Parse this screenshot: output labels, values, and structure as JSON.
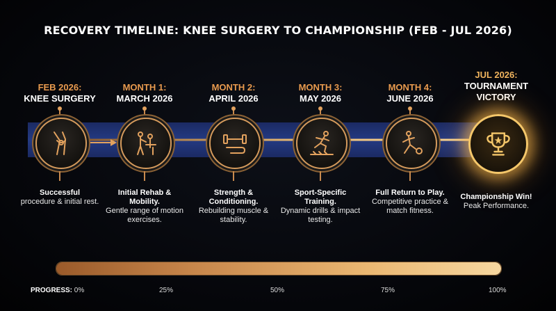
{
  "title": "RECOVERY TIMELINE: KNEE SURGERY TO CHAMPIONSHIP (FEB - JUL 2026)",
  "stages": [
    {
      "period": "FEB 2026:",
      "event": "KNEE SURGERY",
      "icon": "knee-joint-icon",
      "desc_bold": "Successful",
      "desc": "procedure & initial rest."
    },
    {
      "period": "MONTH 1:",
      "event": "MARCH 2026",
      "icon": "rehab-therapist-icon",
      "desc_bold": "Initial Rehab & Mobility.",
      "desc": "Gentle range of motion exercises."
    },
    {
      "period": "MONTH 2:",
      "event": "APRIL 2026",
      "icon": "dumbbell-icon",
      "desc_bold": "Strength & Conditioning.",
      "desc": "Rebuilding muscle & stability."
    },
    {
      "period": "MONTH 3:",
      "event": "MAY 2026",
      "icon": "sprinter-icon",
      "desc_bold": "Sport-Specific Training.",
      "desc": "Dynamic drills & impact testing."
    },
    {
      "period": "MONTH 4:",
      "event": "JUNE 2026",
      "icon": "soccer-player-icon",
      "desc_bold": "Full Return to Play.",
      "desc": "Competitive practice & match fitness."
    },
    {
      "period": "JUL 2026:",
      "event": "TOURNAMENT VICTORY",
      "icon": "trophy-icon",
      "desc_bold": "Championship Win!",
      "desc": "Peak Performance."
    }
  ],
  "progress": {
    "label": "PROGRESS:",
    "ticks": [
      "0%",
      "25%",
      "50%",
      "75%",
      "100%"
    ],
    "value": 100
  },
  "colors": {
    "accent": "#e3a25e",
    "band": "#243a82",
    "text": "#ffffff"
  }
}
